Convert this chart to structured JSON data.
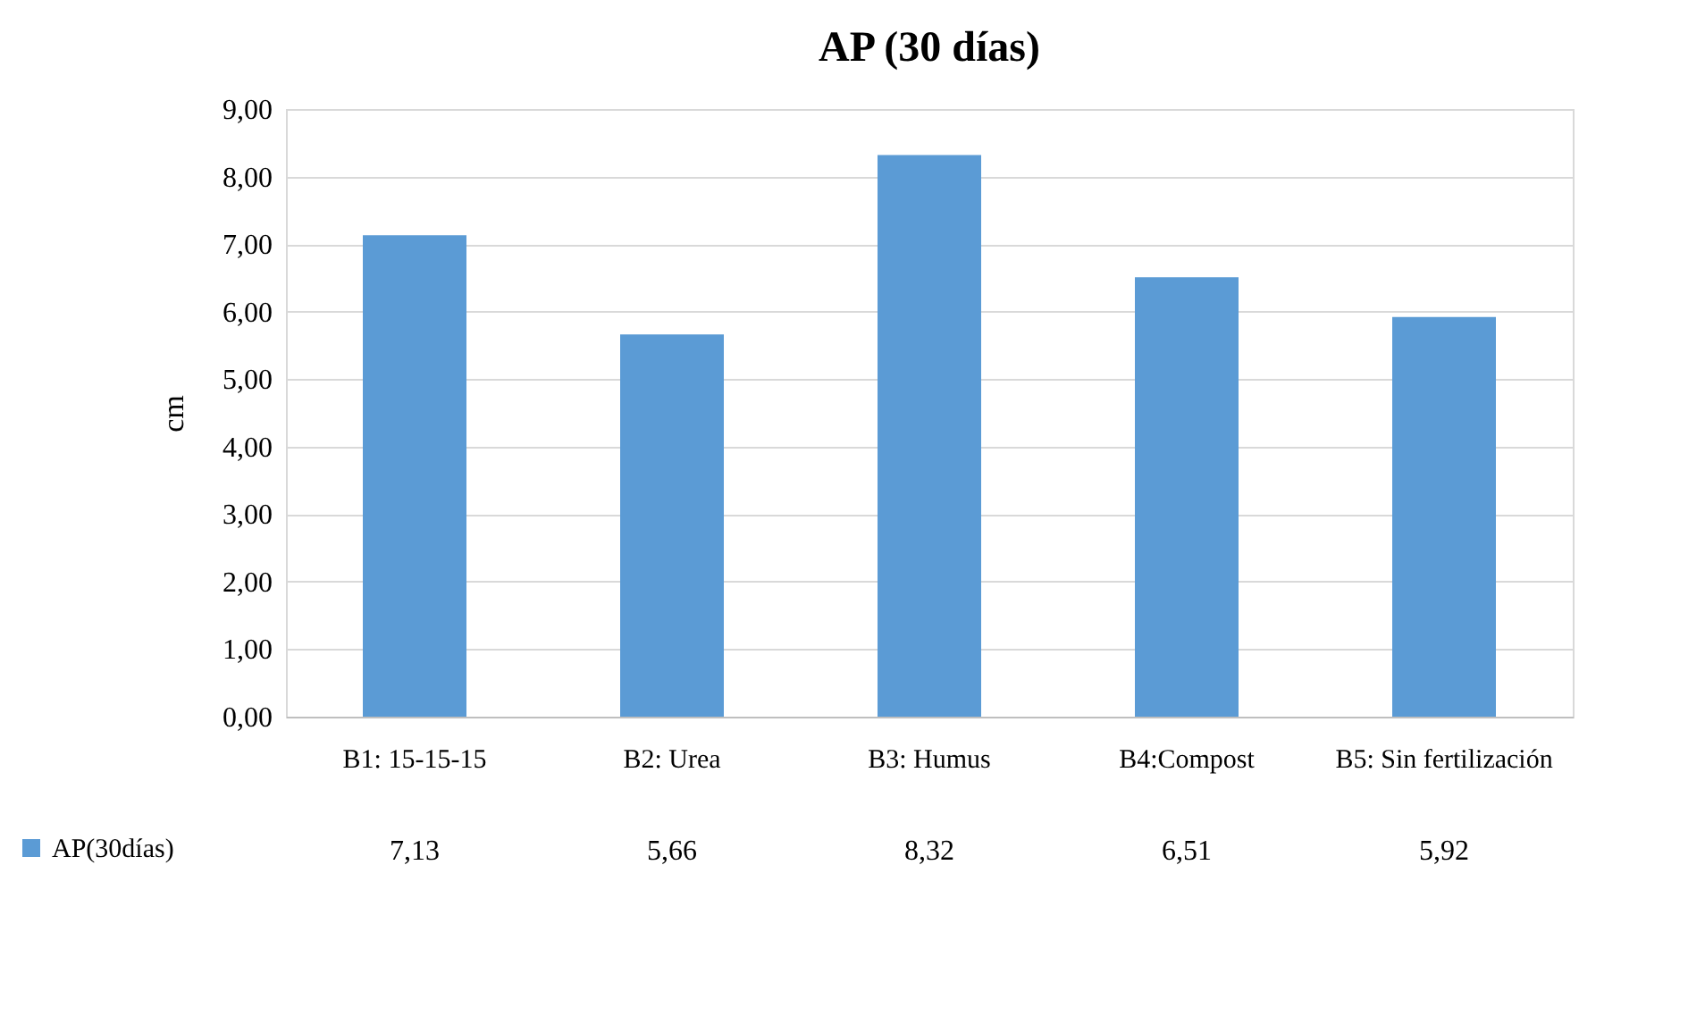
{
  "chart_data": {
    "type": "bar",
    "title": "AP (30 días)",
    "ylabel": "cm",
    "categories": [
      "B1: 15-15-15",
      "B2: Urea",
      "B3: Humus",
      "B4:Compost",
      "B5: Sin fertilización"
    ],
    "series": [
      {
        "name": "AP(30días)",
        "color": "#5b9bd5",
        "values": [
          7.13,
          5.66,
          8.32,
          6.51,
          5.92
        ],
        "value_labels": [
          "7,13",
          "5,66",
          "8,32",
          "6,51",
          "5,92"
        ]
      }
    ],
    "ylim": [
      0,
      9
    ],
    "yticks": [
      {
        "value": 0,
        "label": "0,00"
      },
      {
        "value": 1,
        "label": "1,00"
      },
      {
        "value": 2,
        "label": "2,00"
      },
      {
        "value": 3,
        "label": "3,00"
      },
      {
        "value": 4,
        "label": "4,00"
      },
      {
        "value": 5,
        "label": "5,00"
      },
      {
        "value": 6,
        "label": "6,00"
      },
      {
        "value": 7,
        "label": "7,00"
      },
      {
        "value": 8,
        "label": "8,00"
      },
      {
        "value": 9,
        "label": "9,00"
      }
    ],
    "grid": "y",
    "legend": "bottom left"
  }
}
